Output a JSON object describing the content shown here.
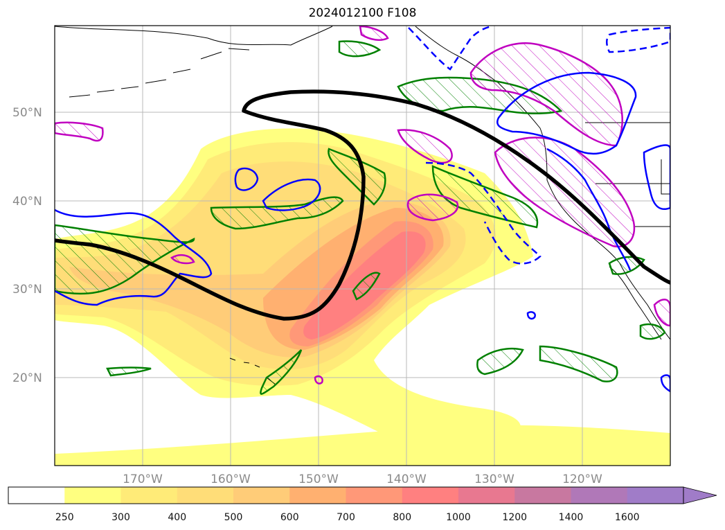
{
  "title": "2024012100 F108",
  "map": {
    "lat_labels": [
      "50°N",
      "40°N",
      "30°N",
      "20°N"
    ],
    "lon_labels": [
      "170°W",
      "160°W",
      "150°W",
      "140°W",
      "130°W",
      "120°W"
    ],
    "grid": true,
    "projection": "PlateCarree, North Pacific",
    "layers": [
      {
        "name": "IVT shading (filled contours)",
        "colors": [
          "#ffff80",
          "#ffe870",
          "#ffd070",
          "#ffb870",
          "#ff9878",
          "#ff7878"
        ]
      },
      {
        "name": "jet axis",
        "color": "#000000"
      },
      {
        "name": "green hatched contours",
        "color": "#008000"
      },
      {
        "name": "magenta hatched contours",
        "color": "#c000c0"
      },
      {
        "name": "blue contours (solid and dashed)",
        "color": "#0000ff"
      }
    ]
  },
  "colorbar": {
    "labels": [
      "250",
      "300",
      "400",
      "500",
      "600",
      "700",
      "800",
      "1000",
      "1200",
      "1400",
      "1600"
    ],
    "colors": [
      "#ffffff",
      "#ffff80",
      "#ffeb78",
      "#ffdd78",
      "#ffcc78",
      "#ffb070",
      "#ff9878",
      "#ff8080",
      "#e87890",
      "#c878a0",
      "#b078b8",
      "#a07cc8"
    ],
    "extend": "max"
  }
}
